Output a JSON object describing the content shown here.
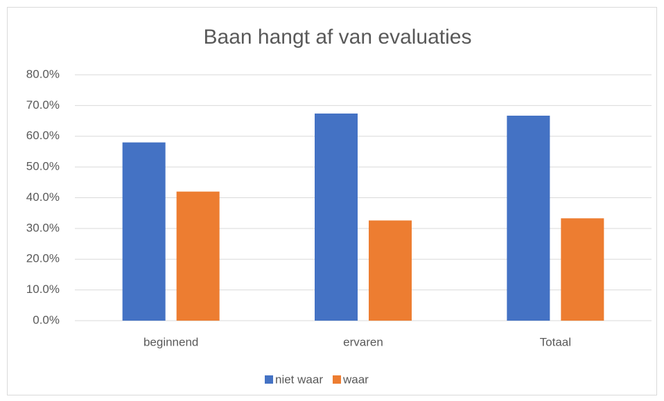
{
  "chart_data": {
    "type": "bar",
    "title": "Baan hangt af van evaluaties",
    "categories": [
      "beginnend",
      "ervaren",
      "Totaal"
    ],
    "series": [
      {
        "name": "niet waar",
        "color": "#4472c4",
        "values": [
          58.0,
          67.4,
          66.7
        ]
      },
      {
        "name": "waar",
        "color": "#ed7d31",
        "values": [
          42.0,
          32.6,
          33.3
        ]
      }
    ],
    "ylim": [
      0,
      80
    ],
    "yticks": [
      {
        "value": 0,
        "label": "0.0%"
      },
      {
        "value": 10,
        "label": "10.0%"
      },
      {
        "value": 20,
        "label": "20.0%"
      },
      {
        "value": 30,
        "label": "30.0%"
      },
      {
        "value": 40,
        "label": "40.0%"
      },
      {
        "value": 50,
        "label": "50.0%"
      },
      {
        "value": 60,
        "label": "60.0%"
      },
      {
        "value": 70,
        "label": "70.0%"
      },
      {
        "value": 80,
        "label": "80.0%"
      }
    ],
    "grid": true,
    "legend": "bottom"
  }
}
